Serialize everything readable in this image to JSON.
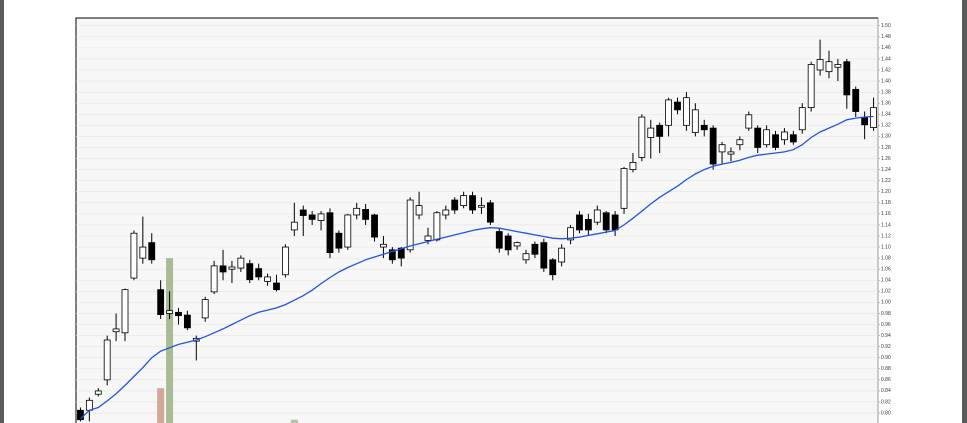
{
  "chart_data": {
    "type": "candlestick",
    "categories": [
      null,
      null,
      null,
      null,
      null,
      null,
      null,
      null,
      null,
      null,
      null,
      null,
      null,
      null,
      null,
      null,
      null,
      null,
      null,
      null,
      null,
      null,
      null,
      null,
      null,
      null,
      null,
      null,
      null,
      null,
      null,
      null,
      null,
      null,
      null,
      null,
      null,
      null,
      null,
      null,
      null,
      null,
      null,
      null,
      null,
      null,
      null,
      null,
      null,
      null,
      null,
      null,
      null,
      null,
      null,
      null,
      null,
      null,
      null,
      null,
      null,
      null,
      null,
      null,
      null,
      null,
      null,
      null,
      null,
      null,
      null,
      null,
      null,
      null,
      null,
      null,
      null,
      null,
      null,
      null,
      null,
      null,
      null,
      null,
      null,
      null,
      null,
      null,
      null,
      null
    ],
    "open": [
      0.805,
      0.805,
      0.834,
      0.86,
      0.947,
      0.945,
      1.044,
      1.08,
      1.108,
      1.023,
      0.98,
      0.982,
      0.977,
      0.93,
      0.972,
      1.019,
      1.066,
      1.06,
      1.062,
      1.07,
      1.061,
      1.038,
      1.035,
      1.05,
      1.131,
      1.167,
      1.158,
      1.148,
      1.162,
      1.125,
      1.1,
      1.158,
      1.168,
      1.158,
      1.1,
      1.095,
      1.098,
      1.095,
      1.158,
      1.112,
      1.113,
      1.158,
      1.185,
      1.175,
      1.193,
      1.172,
      1.18,
      1.128,
      1.12,
      1.102,
      1.077,
      1.105,
      1.108,
      1.077,
      1.073,
      1.113,
      1.158,
      1.15,
      1.145,
      1.162,
      1.158,
      1.17,
      1.24,
      1.262,
      1.298,
      1.32,
      1.32,
      1.362,
      1.32,
      1.307,
      1.32,
      1.315,
      1.272,
      1.268,
      1.285,
      1.315,
      1.315,
      1.285,
      1.303,
      1.294,
      1.303,
      1.312,
      1.352,
      1.42,
      1.417,
      1.425,
      1.435,
      1.385,
      1.334,
      1.316
    ],
    "high": [
      0.81,
      0.828,
      0.845,
      0.94,
      0.98,
      1.025,
      1.13,
      1.155,
      1.125,
      1.04,
      1.02,
      0.99,
      0.985,
      0.94,
      1.01,
      1.075,
      1.095,
      1.075,
      1.085,
      1.077,
      1.07,
      1.052,
      1.05,
      1.105,
      1.18,
      1.175,
      1.165,
      1.165,
      1.17,
      1.13,
      1.16,
      1.18,
      1.178,
      1.16,
      1.12,
      1.1,
      1.1,
      1.19,
      1.2,
      1.135,
      1.165,
      1.175,
      1.19,
      1.2,
      1.2,
      1.19,
      1.185,
      1.135,
      1.125,
      1.11,
      1.095,
      1.11,
      1.115,
      1.08,
      1.105,
      1.14,
      1.165,
      1.16,
      1.175,
      1.165,
      1.165,
      1.245,
      1.27,
      1.34,
      1.33,
      1.325,
      1.37,
      1.37,
      1.38,
      1.36,
      1.33,
      1.32,
      1.29,
      1.28,
      1.3,
      1.345,
      1.32,
      1.32,
      1.31,
      1.315,
      1.31,
      1.36,
      1.435,
      1.475,
      1.455,
      1.44,
      1.44,
      1.39,
      1.345,
      1.37
    ],
    "low": [
      0.785,
      0.785,
      0.83,
      0.85,
      0.93,
      0.93,
      1.04,
      1.07,
      1.07,
      0.97,
      0.97,
      0.96,
      0.95,
      0.895,
      0.965,
      1.015,
      1.04,
      1.035,
      1.055,
      1.035,
      1.04,
      1.03,
      1.02,
      1.045,
      1.12,
      1.12,
      1.14,
      1.13,
      1.08,
      1.09,
      1.095,
      1.15,
      1.14,
      1.11,
      1.08,
      1.07,
      1.065,
      1.09,
      1.15,
      1.105,
      1.11,
      1.15,
      1.16,
      1.17,
      1.16,
      1.16,
      1.14,
      1.09,
      1.085,
      1.095,
      1.07,
      1.08,
      1.055,
      1.04,
      1.065,
      1.105,
      1.125,
      1.12,
      1.14,
      1.125,
      1.12,
      1.16,
      1.235,
      1.255,
      1.26,
      1.27,
      1.3,
      1.34,
      1.31,
      1.3,
      1.3,
      1.24,
      1.25,
      1.255,
      1.275,
      1.31,
      1.27,
      1.28,
      1.275,
      1.285,
      1.285,
      1.305,
      1.345,
      1.41,
      1.405,
      1.4,
      1.35,
      1.335,
      1.295,
      1.31
    ],
    "close": [
      0.788,
      0.823,
      0.84,
      0.932,
      0.952,
      1.023,
      1.125,
      1.1,
      1.077,
      0.978,
      0.985,
      0.976,
      0.954,
      0.935,
      1.005,
      1.066,
      1.055,
      1.064,
      1.08,
      1.041,
      1.046,
      1.046,
      1.023,
      1.1,
      1.145,
      1.157,
      1.15,
      1.16,
      1.09,
      1.098,
      1.158,
      1.17,
      1.15,
      1.118,
      1.105,
      1.077,
      1.08,
      1.185,
      1.175,
      1.12,
      1.162,
      1.167,
      1.167,
      1.193,
      1.167,
      1.175,
      1.145,
      1.098,
      1.095,
      1.108,
      1.088,
      1.087,
      1.062,
      1.05,
      1.098,
      1.135,
      1.131,
      1.131,
      1.167,
      1.131,
      1.131,
      1.242,
      1.253,
      1.335,
      1.315,
      1.3,
      1.366,
      1.348,
      1.37,
      1.348,
      1.312,
      1.25,
      1.285,
      1.272,
      1.294,
      1.339,
      1.28,
      1.312,
      1.28,
      1.308,
      1.29,
      1.352,
      1.43,
      1.439,
      1.435,
      1.43,
      1.375,
      1.345,
      1.321,
      1.352
    ],
    "up_color": "#ffffff",
    "down_color": "#000000",
    "ma": {
      "color": "#2255dd",
      "values": [
        0.79,
        0.805,
        0.81,
        0.822,
        0.835,
        0.85,
        0.866,
        0.882,
        0.9,
        0.912,
        0.918,
        0.924,
        0.928,
        0.932,
        0.938,
        0.945,
        0.952,
        0.96,
        0.968,
        0.976,
        0.982,
        0.986,
        0.99,
        0.996,
        1.004,
        1.012,
        1.022,
        1.034,
        1.045,
        1.055,
        1.063,
        1.07,
        1.077,
        1.082,
        1.087,
        1.092,
        1.097,
        1.102,
        1.106,
        1.11,
        1.114,
        1.118,
        1.122,
        1.126,
        1.13,
        1.133,
        1.135,
        1.134,
        1.131,
        1.128,
        1.125,
        1.122,
        1.119,
        1.116,
        1.115,
        1.116,
        1.118,
        1.121,
        1.124,
        1.127,
        1.13,
        1.14,
        1.152,
        1.165,
        1.178,
        1.19,
        1.2,
        1.21,
        1.222,
        1.232,
        1.24,
        1.246,
        1.25,
        1.253,
        1.257,
        1.262,
        1.266,
        1.268,
        1.27,
        1.272,
        1.276,
        1.285,
        1.298,
        1.308,
        1.315,
        1.322,
        1.33,
        1.333,
        1.335,
        1.336
      ]
    },
    "volume": {
      "values": [
        null,
        null,
        null,
        null,
        null,
        null,
        null,
        null,
        null,
        0.845,
        1.08,
        null,
        null,
        null,
        null,
        null,
        null,
        null,
        null,
        null,
        null,
        null,
        null,
        null,
        0.788,
        null,
        null,
        null,
        null,
        null,
        null,
        null,
        null,
        null,
        null,
        null,
        null,
        null,
        null,
        null,
        null,
        null,
        null,
        null,
        null,
        null,
        null,
        null,
        null,
        null,
        null,
        null,
        null,
        null,
        null,
        null,
        null,
        null,
        null,
        null,
        null,
        null,
        null,
        null,
        null,
        null,
        null,
        null,
        null,
        null,
        null,
        null,
        null,
        null,
        null,
        null,
        null,
        null,
        null,
        null,
        null,
        null,
        null,
        null,
        null,
        null,
        null,
        null,
        null,
        null
      ],
      "colors": [
        null,
        null,
        null,
        null,
        null,
        null,
        null,
        null,
        null,
        "#d4a898",
        null,
        null,
        null,
        null,
        null,
        null,
        null,
        null,
        null,
        null,
        null,
        null,
        null,
        null,
        "#b5c4a8",
        null,
        null,
        null,
        null,
        null,
        null,
        null,
        null,
        null,
        null,
        null,
        null,
        null,
        null,
        null,
        null,
        null,
        null,
        null,
        null,
        null,
        null,
        null,
        null,
        null,
        null,
        null,
        null,
        null,
        null,
        null,
        null,
        null,
        null,
        null,
        null,
        null,
        null,
        null,
        null,
        null,
        null,
        null,
        null,
        null,
        null,
        null,
        null,
        null,
        null,
        null,
        null,
        null,
        null,
        null,
        null,
        null,
        null,
        null,
        null,
        null,
        null,
        null,
        null,
        null
      ],
      "highlight": {
        "index": 10,
        "color": "#a9bb95"
      }
    },
    "ylim": [
      0.782,
      1.514
    ],
    "yticks": [
      {
        "value": 1.5,
        "label": "1.50"
      },
      1.48,
      1.46,
      1.44,
      1.42,
      {
        "value": 1.4,
        "label": "1.40"
      },
      1.38,
      1.36,
      1.34,
      1.32,
      {
        "value": 1.3,
        "label": "1.30"
      },
      1.28,
      1.26,
      1.24,
      1.22,
      {
        "value": 1.2,
        "label": "1.20"
      },
      1.18,
      1.16,
      1.14,
      1.12,
      {
        "value": 1.1,
        "label": "1.10"
      },
      1.08,
      1.06,
      1.04,
      1.02,
      {
        "value": 1,
        "label": "1.00"
      },
      0.98,
      0.96,
      0.94,
      0.92,
      {
        "value": 0.9,
        "label": "0.90"
      },
      0.88,
      0.86,
      0.84,
      0.82,
      {
        "value": 0.8,
        "label": "0.80"
      }
    ],
    "grid": true
  }
}
